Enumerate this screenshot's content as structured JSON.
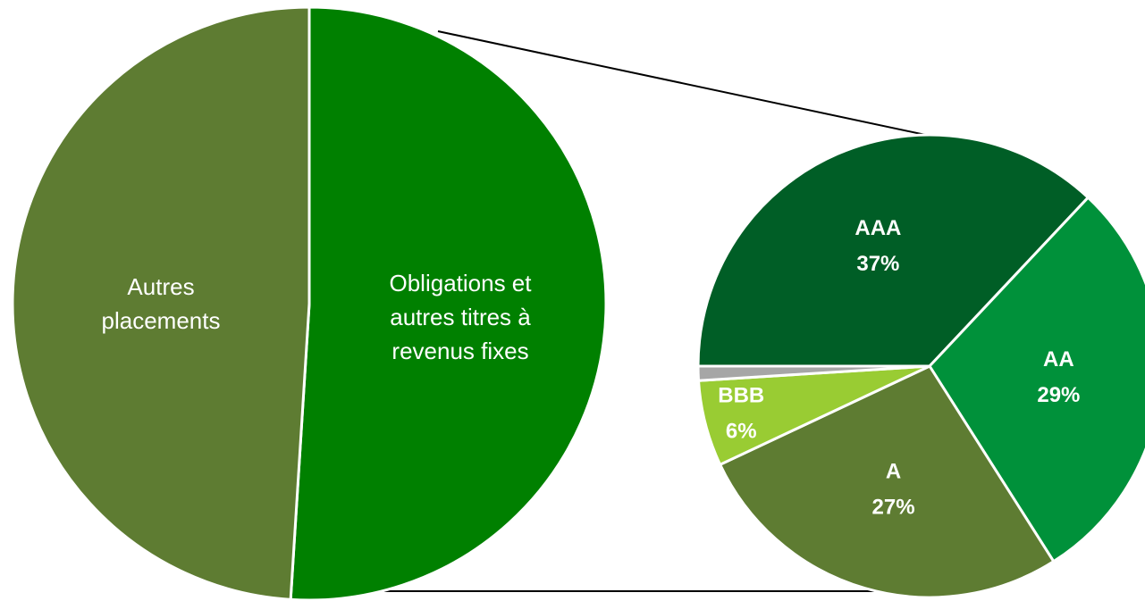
{
  "chart_data": [
    {
      "type": "pie",
      "categories": [
        "Obligations et autres titres à revenus fixes",
        "Autres placements"
      ],
      "values": [
        51,
        49
      ],
      "colors": [
        "#008000",
        "#5e7c32"
      ],
      "start_angle": 0
    },
    {
      "type": "pie",
      "categories": [
        "AAA",
        "AA",
        "A",
        "BBB",
        null
      ],
      "values": [
        37,
        29,
        27,
        6,
        1
      ],
      "value_labels": [
        "37%",
        "29%",
        "27%",
        "6%",
        null
      ],
      "colors": [
        "#005e26",
        "#00913a",
        "#5e7c32",
        "#99cc33",
        "#a6a6a6"
      ],
      "start_angle": 270
    }
  ]
}
